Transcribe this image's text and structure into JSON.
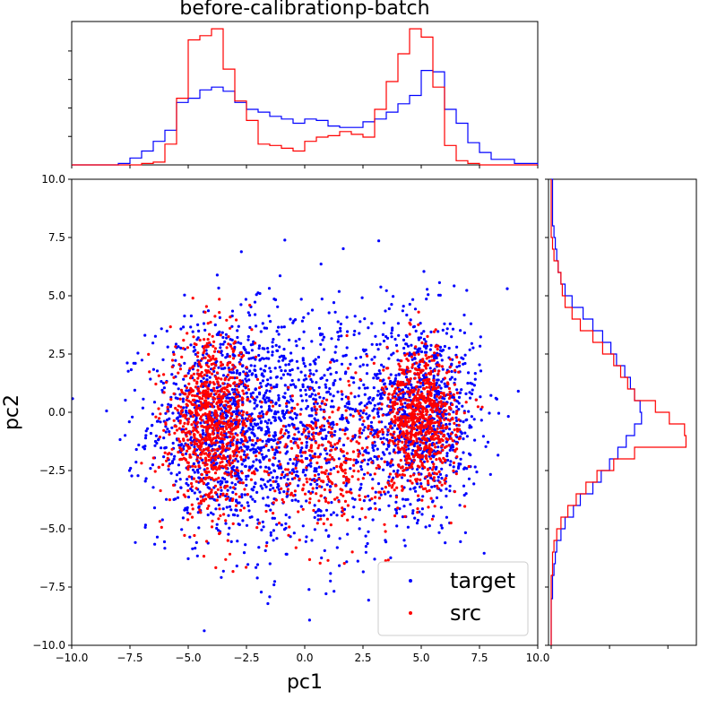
{
  "chart_data": {
    "type": "scatter",
    "title": "before-calibrationp-batch",
    "xlabel": "pc1",
    "ylabel": "pc2",
    "xlim": [
      -10,
      10
    ],
    "ylim": [
      -10,
      10
    ],
    "x_ticks": [
      -10,
      -7.5,
      -5,
      -2.5,
      0,
      2.5,
      5,
      7.5,
      10
    ],
    "y_ticks": [
      -10,
      -7.5,
      -5,
      -2.5,
      0,
      2.5,
      5,
      7.5,
      10
    ],
    "x_tick_labels": [
      "−10.0",
      "−7.5",
      "−5.0",
      "−2.5",
      "0.0",
      "2.5",
      "5.0",
      "7.5",
      "10.0"
    ],
    "y_tick_labels": [
      "−10.0",
      "−7.5",
      "−5.0",
      "−2.5",
      "0.0",
      "2.5",
      "5.0",
      "7.5",
      "10.0"
    ],
    "grid": false,
    "legend_position": "lower-right",
    "series": [
      {
        "name": "target",
        "color": "#0000ff",
        "clusters": [
          {
            "cx": -3.5,
            "cy": -0.5,
            "sx": 1.6,
            "sy": 2.3,
            "n": 1000
          },
          {
            "cx": 5.0,
            "cy": 0.0,
            "sx": 1.3,
            "sy": 2.1,
            "n": 900
          },
          {
            "cx": 0.0,
            "cy": -0.8,
            "sx": 2.4,
            "sy": 2.8,
            "n": 800
          }
        ]
      },
      {
        "name": "src",
        "color": "#ff0000",
        "clusters": [
          {
            "cx": -4.0,
            "cy": -0.5,
            "sx": 0.9,
            "sy": 1.8,
            "n": 900
          },
          {
            "cx": 5.0,
            "cy": -0.3,
            "sx": 0.8,
            "sy": 1.5,
            "n": 800
          },
          {
            "cx": 0.8,
            "cy": -2.0,
            "sx": 1.4,
            "sy": 1.6,
            "n": 350
          }
        ]
      }
    ],
    "top_histogram": {
      "bin_edges": [
        -10,
        -9,
        -8,
        -7.5,
        -7,
        -6.5,
        -6,
        -5.5,
        -5,
        -4.5,
        -4,
        -3.5,
        -3,
        -2.5,
        -2,
        -1.5,
        -1,
        -0.5,
        0,
        0.5,
        1,
        1.5,
        2,
        2.5,
        3,
        3.5,
        4,
        4.5,
        5,
        5.5,
        6,
        6.5,
        7,
        7.5,
        8,
        9,
        10
      ],
      "target": [
        0,
        0,
        0.01,
        0.05,
        0.1,
        0.17,
        0.25,
        0.45,
        0.48,
        0.54,
        0.56,
        0.53,
        0.45,
        0.4,
        0.38,
        0.35,
        0.33,
        0.3,
        0.33,
        0.32,
        0.28,
        0.27,
        0.27,
        0.31,
        0.33,
        0.38,
        0.44,
        0.5,
        0.68,
        0.67,
        0.4,
        0.3,
        0.16,
        0.09,
        0.04,
        0.01
      ],
      "src": [
        0,
        0,
        0,
        0,
        0.01,
        0.02,
        0.15,
        0.48,
        0.9,
        0.93,
        0.98,
        0.69,
        0.46,
        0.32,
        0.15,
        0.14,
        0.12,
        0.1,
        0.17,
        0.2,
        0.21,
        0.24,
        0.22,
        0.2,
        0.4,
        0.6,
        0.8,
        0.98,
        0.92,
        0.56,
        0.14,
        0.03,
        0.01,
        0,
        0,
        0
      ]
    },
    "right_histogram": {
      "bin_edges": [
        10,
        9,
        8,
        7.5,
        7,
        6.5,
        6,
        5.5,
        5,
        4.5,
        4,
        3.5,
        3,
        2.5,
        2,
        1.5,
        1,
        0.5,
        0,
        -0.5,
        -1,
        -1.5,
        -2,
        -2.5,
        -3,
        -3.5,
        -4,
        -4.5,
        -5,
        -5.5,
        -6,
        -6.5,
        -7,
        -7.5,
        -8,
        -9,
        -10
      ],
      "target": [
        0.01,
        0.01,
        0.02,
        0.03,
        0.04,
        0.05,
        0.07,
        0.1,
        0.15,
        0.23,
        0.3,
        0.37,
        0.43,
        0.47,
        0.53,
        0.57,
        0.6,
        0.64,
        0.65,
        0.6,
        0.54,
        0.48,
        0.42,
        0.36,
        0.3,
        0.21,
        0.16,
        0.1,
        0.07,
        0.04,
        0.03,
        0.02,
        0.01,
        0.01,
        0,
        0
      ],
      "src": [
        0,
        0,
        0,
        0.01,
        0.02,
        0.05,
        0.07,
        0.08,
        0.1,
        0.15,
        0.21,
        0.3,
        0.37,
        0.45,
        0.5,
        0.55,
        0.6,
        0.75,
        0.85,
        0.96,
        0.97,
        0.6,
        0.45,
        0.33,
        0.25,
        0.18,
        0.12,
        0.07,
        0.04,
        0.02,
        0.01,
        0.01,
        0,
        0,
        0,
        0
      ]
    }
  }
}
